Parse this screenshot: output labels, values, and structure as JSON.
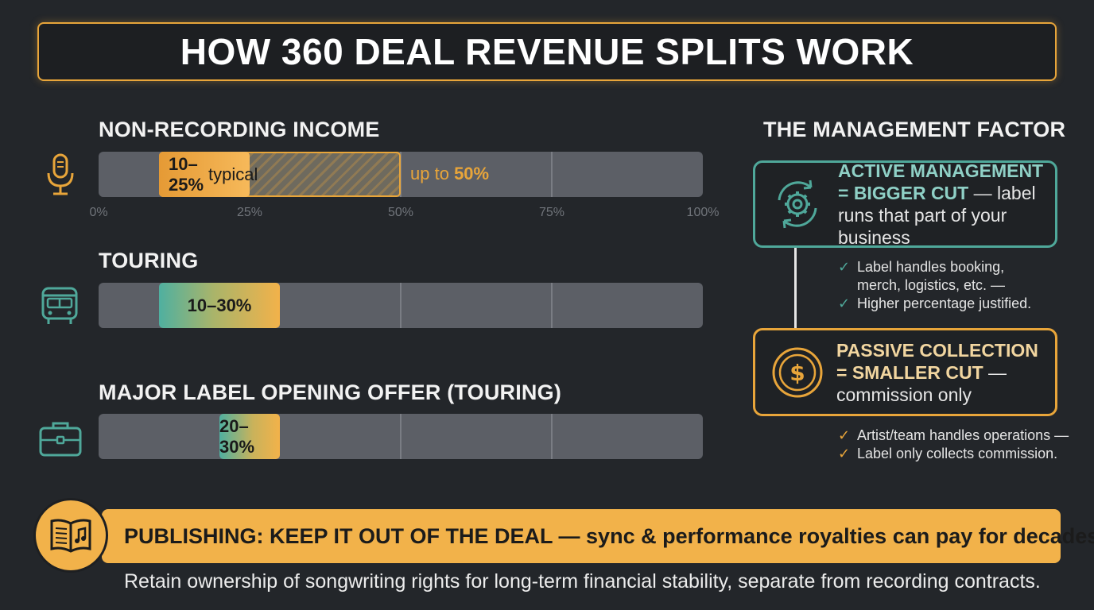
{
  "title": "HOW 360 DEAL REVENUE SPLITS WORK",
  "colors": {
    "background": "#23262a",
    "accent_orange": "#f2b24a",
    "accent_teal": "#4fa89a",
    "track": "#5c5f66"
  },
  "bars": [
    {
      "heading": "NON-RECORDING INCOME",
      "icon": "microphone-icon",
      "range": [
        10,
        25
      ],
      "label_pct": "10–25%",
      "label_word": "typical",
      "max_pct": 50,
      "max_prefix": "up to",
      "max_label": "50%"
    },
    {
      "heading": "TOURING",
      "icon": "bus-icon",
      "range": [
        10,
        30
      ],
      "label": "10–30%"
    },
    {
      "heading": "MAJOR LABEL OPENING OFFER (TOURING)",
      "icon": "briefcase-icon",
      "range": [
        20,
        30
      ],
      "label": "20–30%"
    }
  ],
  "axis_ticks": [
    "0%",
    "25%",
    "50%",
    "75%",
    "100%"
  ],
  "management": {
    "heading": "THE MANAGEMENT FACTOR",
    "active": {
      "icon": "gear-cycle-icon",
      "bold": "ACTIVE MANAGEMENT = BIGGER CUT",
      "rest": " — label runs that part of your business",
      "checks": [
        "Label handles booking, merch, logistics, etc. —",
        "Higher percentage justified."
      ]
    },
    "passive": {
      "icon": "dollar-coin-icon",
      "bold": "PASSIVE COLLECTION = SMALLER CUT",
      "rest": " — commission only",
      "checks": [
        "Artist/team handles operations —",
        "Label only collects commission."
      ]
    }
  },
  "publishing": {
    "icon": "songbook-icon",
    "headline": "PUBLISHING: KEEP IT OUT OF THE DEAL — sync & performance royalties can pay for decades",
    "subtext": "Retain ownership of songwriting rights for long-term financial stability, separate from recording contracts."
  }
}
